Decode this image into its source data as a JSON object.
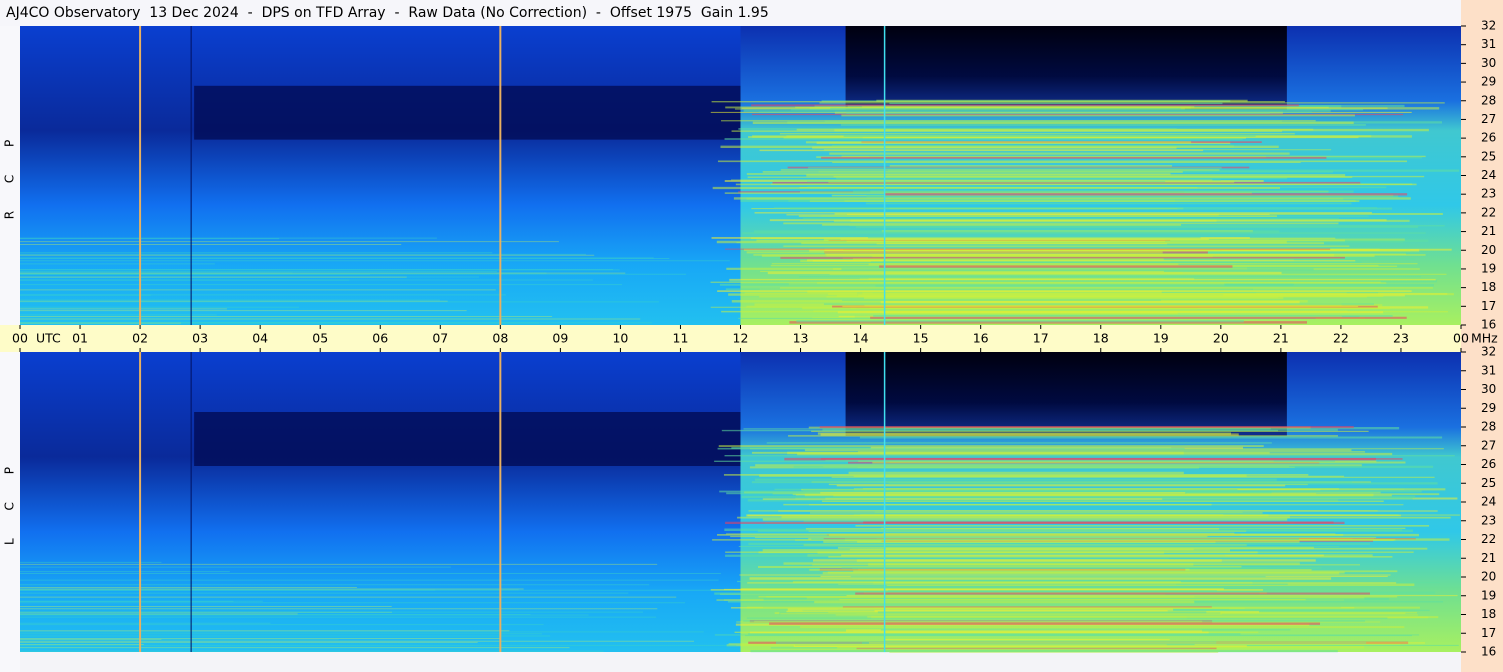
{
  "title": "AJ4CO Observatory  13 Dec 2024  -  DPS on TFD Array  -  Raw Data (No Correction)  -  Offset 1975  Gain 1.95",
  "chart_data": [
    {
      "type": "spectrogram",
      "title": "R C P",
      "xlim": [
        0,
        24
      ],
      "x_unit": "UTC",
      "xticks": [
        {
          "value": 0,
          "label": "00"
        },
        {
          "value": 1,
          "label": "01"
        },
        {
          "value": 2,
          "label": "02"
        },
        {
          "value": 3,
          "label": "03"
        },
        {
          "value": 4,
          "label": "04"
        },
        {
          "value": 5,
          "label": "05"
        },
        {
          "value": 6,
          "label": "06"
        },
        {
          "value": 7,
          "label": "07"
        },
        {
          "value": 8,
          "label": "08"
        },
        {
          "value": 9,
          "label": "09"
        },
        10,
        11,
        12,
        13,
        14,
        15,
        16,
        17,
        18,
        19,
        20,
        21,
        22,
        23,
        {
          "value": 24,
          "label": "00"
        }
      ],
      "ylim": [
        16,
        32
      ],
      "y_unit": "MHz",
      "yticks": [
        16,
        17,
        18,
        19,
        20,
        21,
        22,
        23,
        24,
        25,
        26,
        27,
        28,
        29,
        30,
        31,
        32
      ]
    },
    {
      "type": "spectrogram",
      "title": "L C P",
      "ylim": [
        16,
        32
      ],
      "yticks": [
        16,
        17,
        18,
        19,
        20,
        21,
        22,
        23,
        24,
        25,
        26,
        27,
        28,
        29,
        30,
        31,
        32
      ]
    }
  ]
}
